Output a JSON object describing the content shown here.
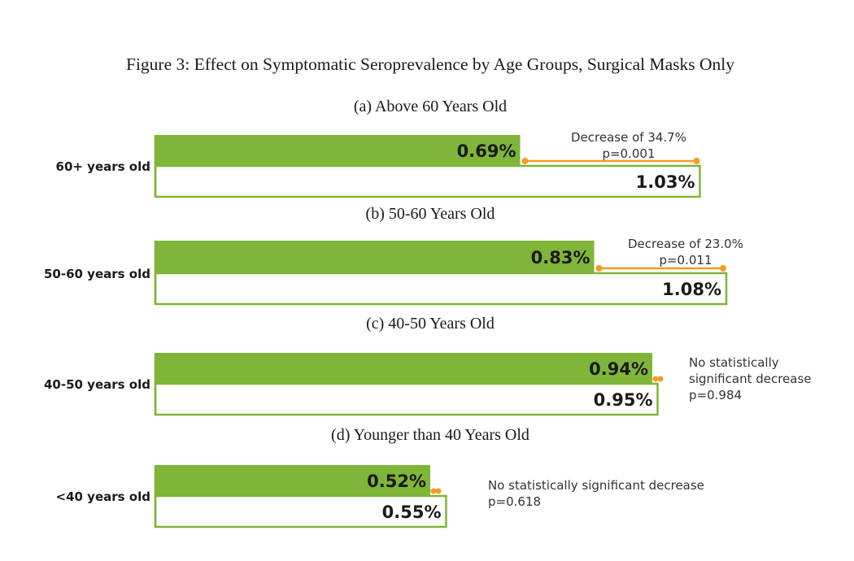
{
  "figure_title": "Figure 3: Effect on Symptomatic Seroprevalence by Age Groups, Surgical Masks Only",
  "colors": {
    "bar_fill": "#7fb539",
    "bar_outline": "#7fb539",
    "control_fill": "#ffffff",
    "bracket": "#f59d22",
    "text": "#1a1a1a"
  },
  "chart_data": [
    {
      "type": "bar",
      "orientation": "horizontal",
      "subtitle": "(a) Above 60 Years Old",
      "category": "60+ years old",
      "values": [
        0.69,
        1.03
      ],
      "value_labels": [
        "0.69%",
        "1.03%"
      ],
      "annotation": [
        "Decrease of 34.7%",
        "p=0.001"
      ]
    },
    {
      "type": "bar",
      "orientation": "horizontal",
      "subtitle": "(b) 50-60 Years Old",
      "category": "50-60 years old",
      "values": [
        0.83,
        1.08
      ],
      "value_labels": [
        "0.83%",
        "1.08%"
      ],
      "annotation": [
        "Decrease of  23.0%",
        "p=0.011"
      ]
    },
    {
      "type": "bar",
      "orientation": "horizontal",
      "subtitle": "(c) 40-50 Years Old",
      "category": "40-50 years old",
      "values": [
        0.94,
        0.95
      ],
      "value_labels": [
        "0.94%",
        "0.95%"
      ],
      "annotation": [
        "No statistically",
        "significant decrease",
        "p=0.984"
      ]
    },
    {
      "type": "bar",
      "orientation": "horizontal",
      "subtitle": "(d) Younger than 40 Years Old",
      "category": "<40 years old",
      "values": [
        0.52,
        0.55
      ],
      "value_labels": [
        "0.52%",
        "0.55%"
      ],
      "annotation": [
        "No statistically significant decrease",
        "p=0.618"
      ]
    }
  ]
}
